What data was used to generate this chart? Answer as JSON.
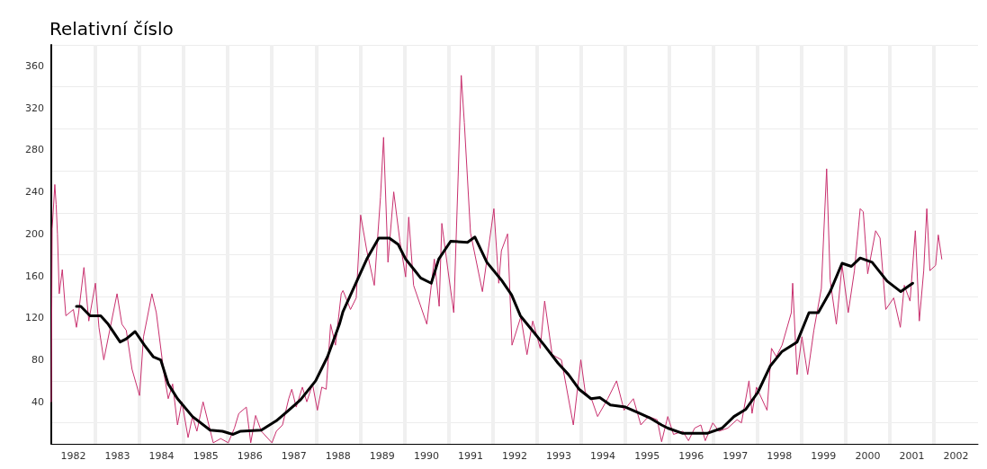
{
  "chart_data": {
    "type": "line",
    "ylabel": "Relativní číslo",
    "xlim": [
      1982,
      2003
    ],
    "xticks": [
      {
        "value": 1982.5,
        "label": "1982"
      },
      {
        "value": 1983.5,
        "label": "1983"
      },
      {
        "value": 1984.5,
        "label": "1984"
      },
      {
        "value": 1985.5,
        "label": "1985"
      },
      {
        "value": 1986.5,
        "label": "1986"
      },
      {
        "value": 1987.5,
        "label": "1987"
      },
      {
        "value": 1988.5,
        "label": "1988"
      },
      {
        "value": 1989.5,
        "label": "1989"
      },
      {
        "value": 1990.5,
        "label": "1990"
      },
      {
        "value": 1991.5,
        "label": "1991"
      },
      {
        "value": 1992.5,
        "label": "1992"
      },
      {
        "value": 1993.5,
        "label": "1993"
      },
      {
        "value": 1994.5,
        "label": "1994"
      },
      {
        "value": 1995.5,
        "label": "1995"
      },
      {
        "value": 1996.5,
        "label": "1996"
      },
      {
        "value": 1997.5,
        "label": "1997"
      },
      {
        "value": 1998.5,
        "label": "1998"
      },
      {
        "value": 1999.5,
        "label": "1999"
      },
      {
        "value": 2000.5,
        "label": "2000"
      },
      {
        "value": 2001.5,
        "label": "2001"
      },
      {
        "value": 2002.5,
        "label": "2002"
      },
      {
        "value": 1983,
        "label": null
      },
      {
        "value": 1984,
        "label": null
      },
      {
        "value": 1985,
        "label": null
      },
      {
        "value": 1986,
        "label": null
      },
      {
        "value": 1987,
        "label": null
      },
      {
        "value": 1988,
        "label": null
      },
      {
        "value": 1989,
        "label": null
      },
      {
        "value": 1990,
        "label": null
      },
      {
        "value": 1991,
        "label": null
      },
      {
        "value": 1992,
        "label": null
      },
      {
        "value": 1993,
        "label": null
      },
      {
        "value": 1994,
        "label": null
      },
      {
        "value": 1995,
        "label": null
      },
      {
        "value": 1996,
        "label": null
      },
      {
        "value": 1997,
        "label": null
      },
      {
        "value": 1998,
        "label": null
      },
      {
        "value": 1999,
        "label": null
      },
      {
        "value": 2000,
        "label": null
      },
      {
        "value": 2001,
        "label": null
      },
      {
        "value": 2002,
        "label": null
      }
    ],
    "ylim": [
      0,
      380
    ],
    "yticks": [
      {
        "value": 20,
        "label": null
      },
      40,
      {
        "value": 60,
        "label": null
      },
      80,
      {
        "value": 100,
        "label": null
      },
      120,
      {
        "value": 140,
        "label": null
      },
      160,
      {
        "value": 180,
        "label": null
      },
      200,
      {
        "value": 220,
        "label": null
      },
      240,
      {
        "value": 260,
        "label": null
      },
      280,
      {
        "value": 300,
        "label": null
      },
      320,
      {
        "value": 340,
        "label": null
      },
      360,
      {
        "value": 380,
        "label": null
      }
    ],
    "grid": true,
    "marker": "none",
    "line_style": "solid",
    "series": [
      {
        "color": "#c8306e",
        "x": [
          1982.0,
          1982.02,
          1982.08,
          1982.11,
          1982.14,
          1982.18,
          1982.25,
          1982.33,
          1982.5,
          1982.57,
          1982.62,
          1982.74,
          1982.85,
          1983.0,
          1983.08,
          1983.19,
          1983.49,
          1983.6,
          1983.7,
          1983.83,
          1984.0,
          1984.09,
          1984.17,
          1984.28,
          1984.38,
          1984.55,
          1984.65,
          1984.75,
          1984.86,
          1984.96,
          1985.1,
          1985.2,
          1985.3,
          1985.44,
          1985.67,
          1985.84,
          1986.01,
          1986.15,
          1986.25,
          1986.42,
          1986.52,
          1986.63,
          1986.76,
          1987.0,
          1987.1,
          1987.24,
          1987.38,
          1987.45,
          1987.55,
          1987.69,
          1987.79,
          1987.92,
          1988.03,
          1988.13,
          1988.23,
          1988.33,
          1988.44,
          1988.57,
          1988.61,
          1988.78,
          1988.91,
          1989.01,
          1989.15,
          1989.32,
          1989.46,
          1989.53,
          1989.63,
          1989.76,
          1989.9,
          1990.03,
          1990.1,
          1990.21,
          1990.51,
          1990.68,
          1990.79,
          1990.85,
          1990.99,
          1991.12,
          1991.22,
          1991.29,
          1991.36,
          1991.5,
          1991.77,
          1991.9,
          1992.03,
          1992.14,
          1992.2,
          1992.34,
          1992.44,
          1992.64,
          1992.78,
          1992.91,
          1993.08,
          1993.18,
          1993.35,
          1993.56,
          1993.83,
          1994.0,
          1994.1,
          1994.24,
          1994.38,
          1994.61,
          1994.81,
          1994.98,
          1995.19,
          1995.36,
          1995.53,
          1995.73,
          1995.83,
          1995.97,
          1996.1,
          1996.31,
          1996.44,
          1996.58,
          1996.72,
          1996.82,
          1996.99,
          1997.13,
          1997.33,
          1997.54,
          1997.64,
          1997.81,
          1997.88,
          1997.98,
          1998.22,
          1998.32,
          1998.43,
          1998.56,
          1998.77,
          1998.8,
          1998.9,
          1999.01,
          1999.14,
          1999.28,
          1999.45,
          1999.57,
          1999.65,
          1999.79,
          1999.92,
          2000.06,
          2000.2,
          2000.33,
          2000.4,
          2000.5,
          2000.68,
          2000.78,
          2000.91,
          2001.09,
          2001.24,
          2001.33,
          2001.46,
          2001.58,
          2001.67,
          2001.77,
          2001.84,
          2001.91,
          2002.04,
          2002.1,
          2002.18
        ],
        "values": [
          40,
          205,
          247,
          228,
          200,
          143,
          166,
          122,
          128,
          111,
          125,
          168,
          117,
          153,
          111,
          80,
          143,
          114,
          108,
          71,
          46,
          102,
          119,
          143,
          125,
          68,
          43,
          57,
          18,
          40,
          6,
          26,
          12,
          40,
          1,
          5,
          1,
          15,
          29,
          35,
          1,
          27,
          12,
          1,
          12,
          18,
          43,
          52,
          35,
          54,
          40,
          57,
          32,
          54,
          52,
          114,
          94,
          143,
          146,
          128,
          139,
          218,
          184,
          151,
          235,
          292,
          173,
          240,
          193,
          159,
          216,
          151,
          114,
          176,
          131,
          210,
          165,
          125,
          255,
          351,
          306,
          201,
          145,
          184,
          224,
          153,
          184,
          200,
          94,
          121,
          85,
          117,
          91,
          136,
          85,
          80,
          18,
          80,
          49,
          43,
          26,
          43,
          60,
          32,
          43,
          18,
          26,
          23,
          2,
          26,
          9,
          12,
          3,
          15,
          18,
          3,
          20,
          12,
          15,
          23,
          20,
          60,
          29,
          54,
          32,
          91,
          83,
          94,
          125,
          153,
          66,
          102,
          66,
          108,
          148,
          262,
          156,
          114,
          170,
          125,
          165,
          224,
          221,
          162,
          203,
          196,
          128,
          139,
          111,
          151,
          136,
          203,
          117,
          165,
          224,
          165,
          170,
          199,
          176
        ]
      },
      {
        "color": "#000000",
        "x": [
          1982.57,
          1982.67,
          1982.88,
          1983.12,
          1983.29,
          1983.56,
          1983.7,
          1983.9,
          1984.11,
          1984.31,
          1984.48,
          1984.65,
          1984.86,
          1985.2,
          1985.6,
          1985.88,
          1986.12,
          1986.29,
          1986.76,
          1987.1,
          1987.38,
          1987.65,
          1987.99,
          1988.26,
          1988.53,
          1988.61,
          1988.88,
          1989.15,
          1989.42,
          1989.66,
          1989.86,
          1990.03,
          1990.24,
          1990.37,
          1990.61,
          1990.78,
          1991.05,
          1991.43,
          1991.6,
          1991.87,
          1992.2,
          1992.43,
          1992.63,
          1992.9,
          1993.17,
          1993.48,
          1993.72,
          1993.96,
          1994.23,
          1994.43,
          1994.67,
          1995.01,
          1995.28,
          1995.55,
          1995.83,
          1995.97,
          1996.31,
          1996.86,
          1997.2,
          1997.47,
          1997.74,
          1998.01,
          1998.29,
          1998.56,
          1998.9,
          1999.17,
          1999.38,
          1999.65,
          1999.92,
          2000.13,
          2000.33,
          2000.6,
          2000.94,
          2001.25,
          2001.52
        ],
        "values": [
          131,
          131,
          122,
          122,
          114,
          97,
          100,
          107,
          94,
          83,
          80,
          57,
          43,
          26,
          13,
          12,
          9,
          12,
          13,
          22,
          32,
          42,
          60,
          83,
          114,
          126,
          151,
          176,
          196,
          196,
          190,
          176,
          165,
          158,
          153,
          176,
          193,
          192,
          197,
          173,
          156,
          142,
          122,
          108,
          94,
          77,
          66,
          52,
          43,
          44,
          37,
          35,
          30,
          25,
          18,
          15,
          10,
          10,
          15,
          26,
          33,
          49,
          74,
          88,
          97,
          125,
          125,
          145,
          172,
          169,
          177,
          173,
          155,
          145,
          153
        ]
      }
    ]
  }
}
